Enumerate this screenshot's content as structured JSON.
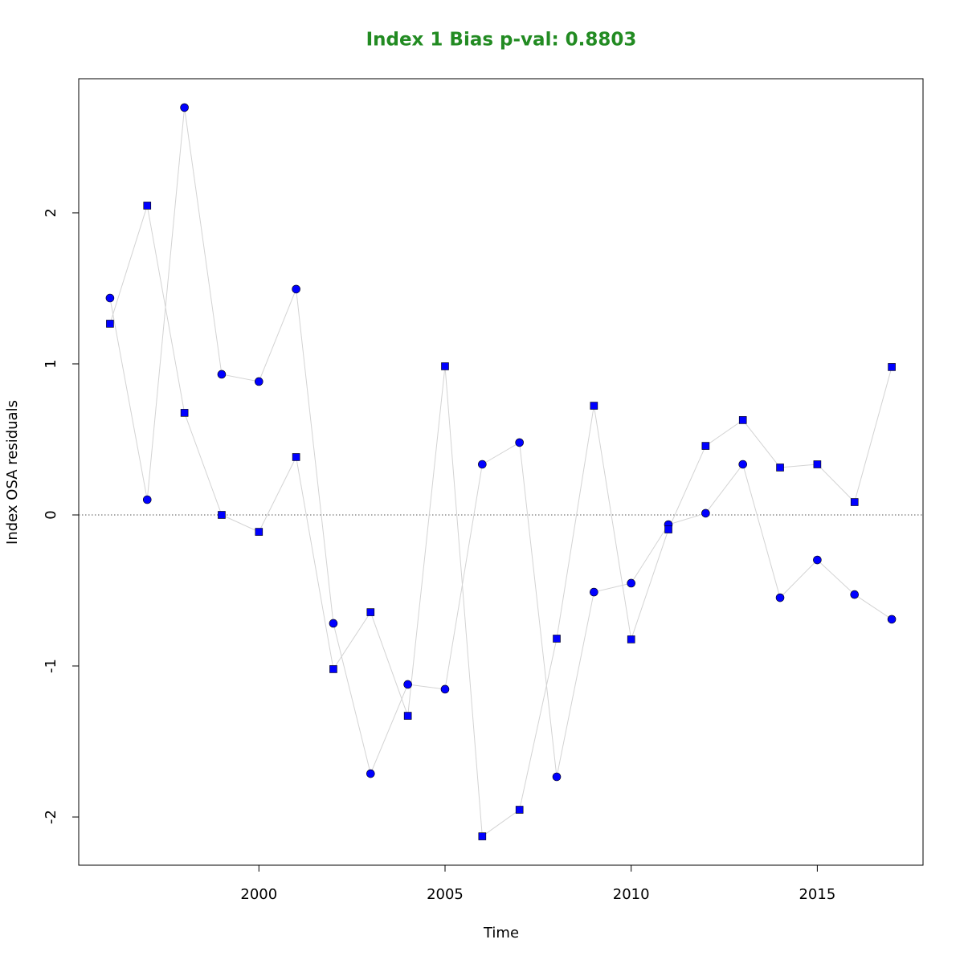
{
  "chart_data": {
    "type": "scatter",
    "title": "Index 1 Bias p-val: 0.8803",
    "title_color": "#228b22",
    "x_label": "Time",
    "y_label": "Index OSA residuals",
    "x": [
      1996,
      1997,
      1998,
      1999,
      2000,
      2001,
      2002,
      2003,
      2004,
      2005,
      2006,
      2007,
      2008,
      2009,
      2010,
      2011,
      2012,
      2013,
      2014,
      2015,
      2016,
      2017
    ],
    "series": [
      {
        "marker": "circle",
        "color": "#0000ff",
        "line_color": "#d3d3d3",
        "values": [
          1.436,
          0.101,
          2.697,
          0.931,
          0.883,
          1.495,
          -0.718,
          -1.713,
          -1.122,
          -1.154,
          0.335,
          0.479,
          -1.734,
          -0.511,
          -0.452,
          -0.064,
          0.011,
          0.335,
          -0.548,
          -0.298,
          -0.527,
          -0.691
        ]
      },
      {
        "marker": "square",
        "color": "#0000ff",
        "line_color": "#d3d3d3",
        "values": [
          1.266,
          2.048,
          0.676,
          0.0,
          -0.112,
          0.383,
          -1.021,
          -0.644,
          -1.33,
          0.984,
          -2.128,
          -1.952,
          -0.819,
          0.723,
          -0.824,
          -0.096,
          0.457,
          0.628,
          0.314,
          0.335,
          0.085,
          0.979
        ]
      }
    ],
    "reference_line": 0,
    "xlim": [
      1995.16,
      2017.84
    ],
    "xticks": [
      2000,
      2005,
      2010,
      2015
    ],
    "ylim": [
      -2.319,
      2.888
    ],
    "yticks": [
      -2,
      -1,
      0,
      1,
      2
    ]
  }
}
